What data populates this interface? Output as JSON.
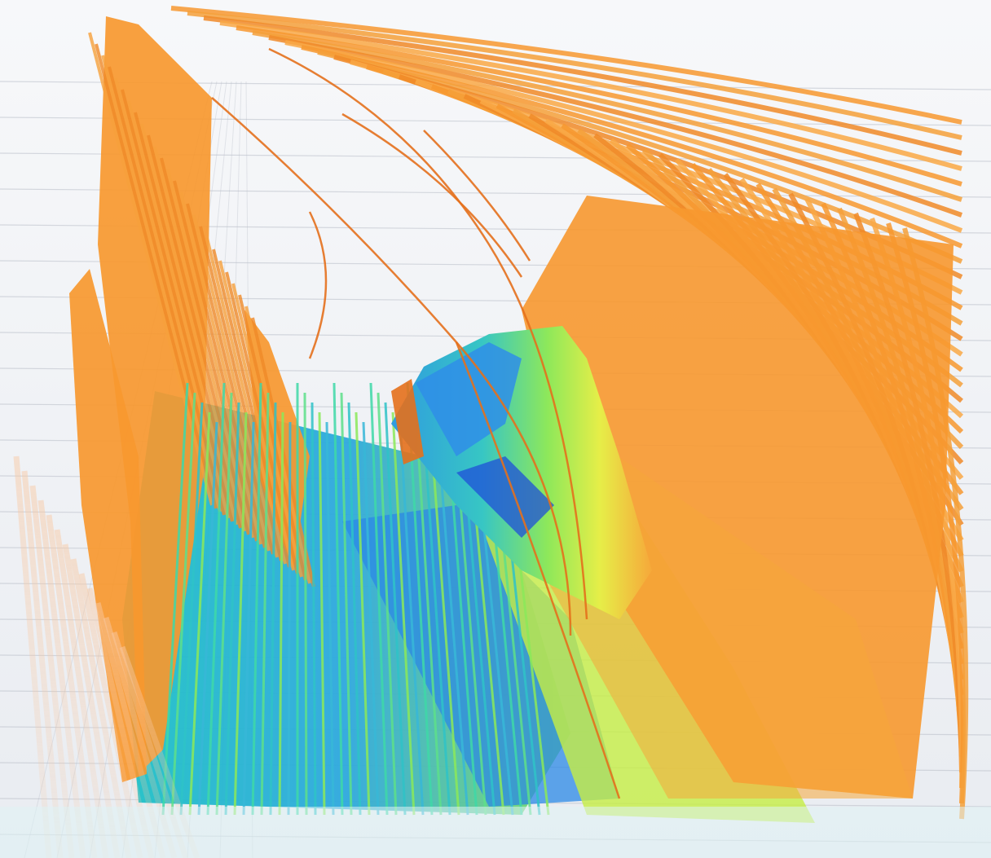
{
  "scene": {
    "subject": "streamline-visualization",
    "colormap": [
      "#1f4fd8",
      "#2e86e8",
      "#1ec8c8",
      "#40e0a0",
      "#9ff04a",
      "#e8f040",
      "#f6b43c",
      "#f5962e",
      "#ee7a22"
    ],
    "background": "#ffffff",
    "floor_color": "#eef0f4",
    "grid_color": "#b9bec8",
    "stream_orange": "#f7982f",
    "stream_dark_orange": "#e4701c"
  }
}
